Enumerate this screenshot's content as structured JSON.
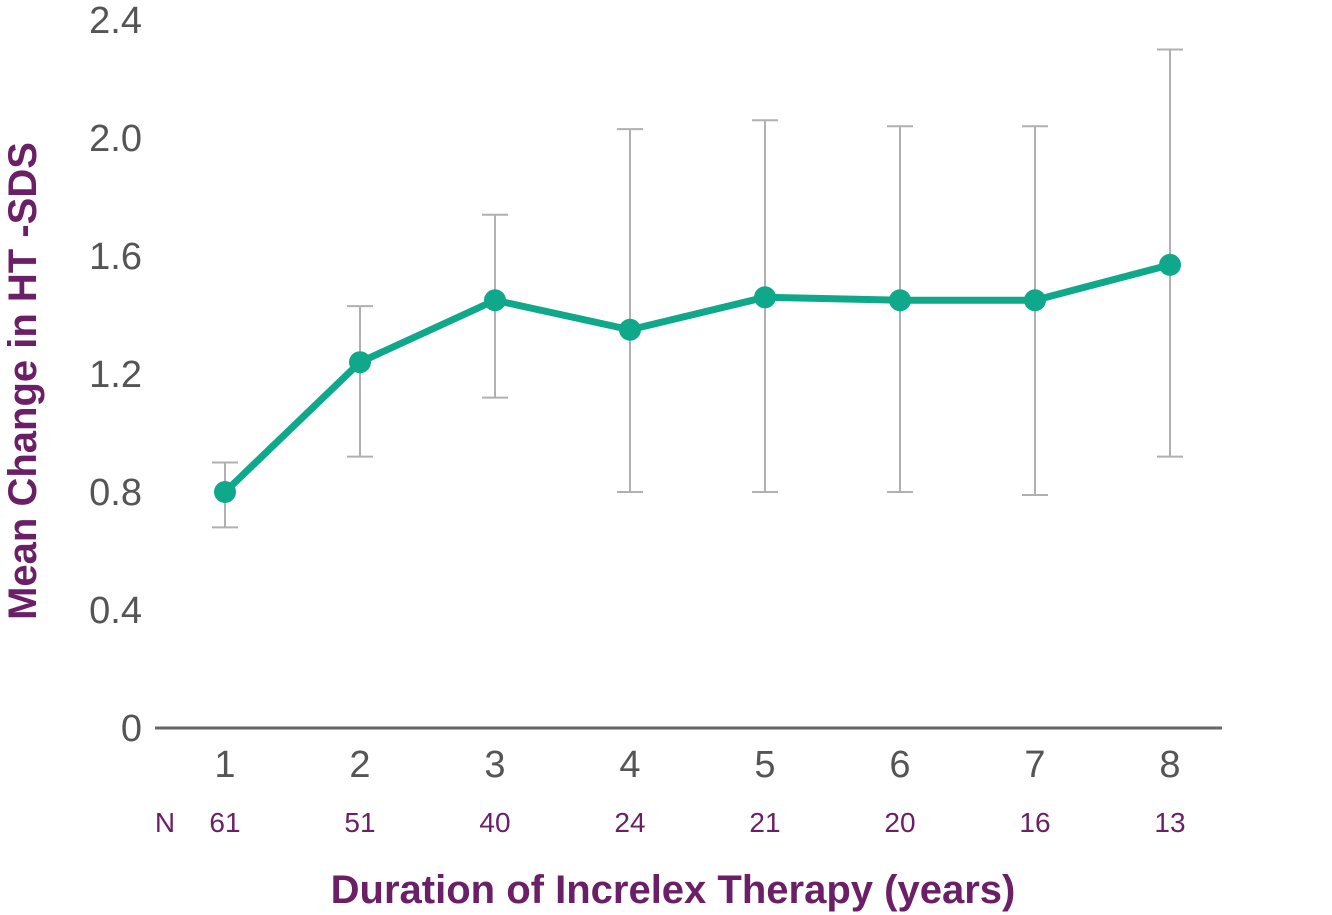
{
  "chart_data": {
    "type": "line",
    "title": "",
    "xlabel": "Duration of Increlex Therapy (years)",
    "ylabel": "Mean Change in HT  -SDS",
    "x": [
      1,
      2,
      3,
      4,
      5,
      6,
      7,
      8
    ],
    "x_tick_labels": [
      "1",
      "2",
      "3",
      "4",
      "5",
      "6",
      "7",
      "8"
    ],
    "y_ticks": [
      "0",
      "0.4",
      "0.8",
      "1.2",
      "1.6",
      "2.0",
      "2.4"
    ],
    "ylim": [
      0,
      2.4
    ],
    "series": [
      {
        "values": [
          0.8,
          1.24,
          1.45,
          1.35,
          1.46,
          1.45,
          1.45,
          1.57
        ],
        "error_upper": [
          0.9,
          1.43,
          1.74,
          2.03,
          2.06,
          2.04,
          2.04,
          2.3
        ],
        "error_lower": [
          0.68,
          0.92,
          1.12,
          0.8,
          0.8,
          0.8,
          0.79,
          0.92
        ]
      }
    ],
    "n_label": "N",
    "n_values": [
      "61",
      "51",
      "40",
      "24",
      "21",
      "20",
      "16",
      "13"
    ],
    "grid": false,
    "legend": "none",
    "colors": {
      "line": "#0fa88a",
      "error_bar": "#b0b0b0",
      "axis": "#666666",
      "title_text": "#6b1f66",
      "tick_text": "#555555"
    }
  }
}
